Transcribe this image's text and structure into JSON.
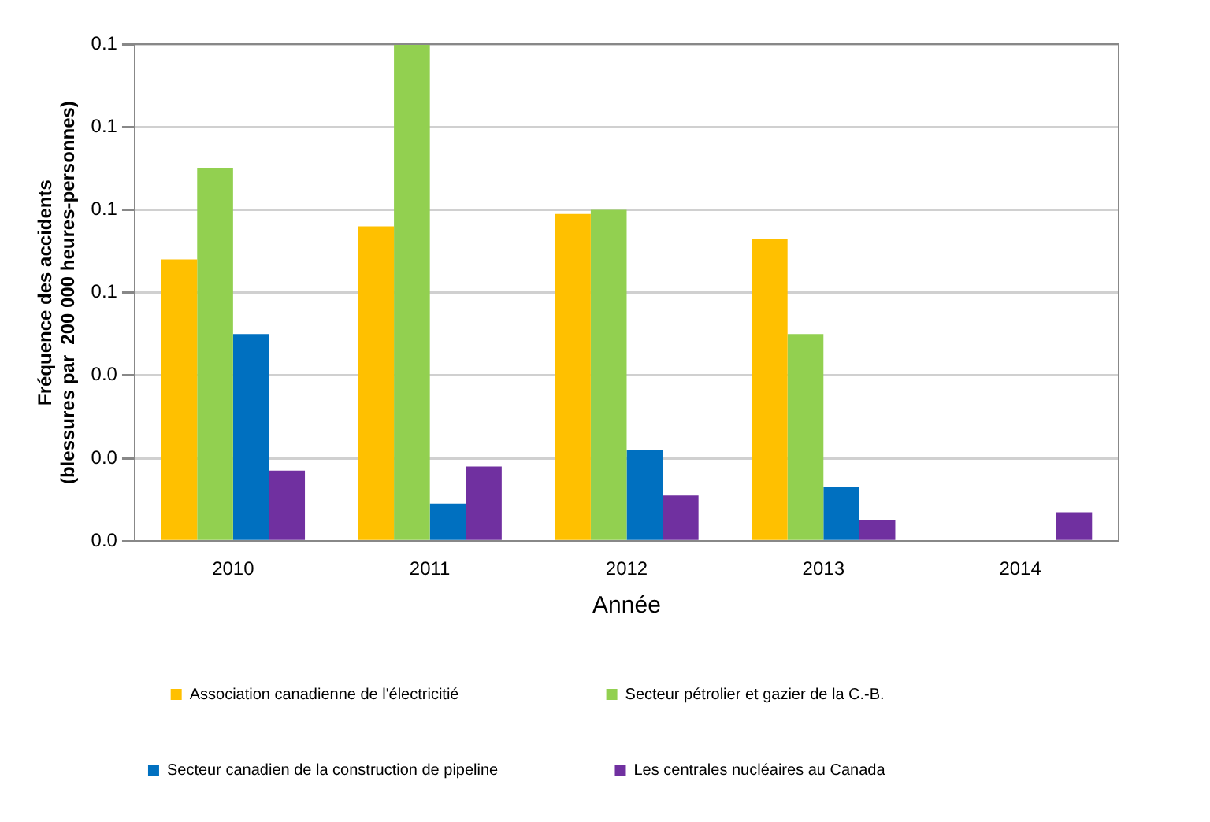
{
  "chart_data": {
    "type": "bar",
    "xlabel": "Année",
    "ylabel": "Fréquence des accidents\n(blessures par  200 000 heures-personnes)",
    "categories": [
      "2010",
      "2011",
      "2012",
      "2013",
      "2014"
    ],
    "series": [
      {
        "name": "Association canadienne de l'électricitié",
        "color": "#ffc000",
        "values": [
          0.068,
          0.076,
          0.079,
          0.073,
          null
        ]
      },
      {
        "name": "Secteur pétrolier et gazier de la C.-B.",
        "color": "#92d050",
        "values": [
          0.09,
          0.12,
          0.08,
          0.05,
          null
        ]
      },
      {
        "name": "Secteur canadien de la construction de pipeline",
        "color": "#0070c0",
        "values": [
          0.05,
          0.009,
          0.022,
          0.013,
          null
        ]
      },
      {
        "name": "Les centrales nucléaires au Canada",
        "color": "#7030a0",
        "values": [
          0.017,
          0.018,
          0.011,
          0.005,
          0.007
        ]
      }
    ],
    "ylim": [
      0,
      0.12
    ],
    "yticks": [
      {
        "value": 0,
        "label": "0.0"
      },
      {
        "value": 0.02,
        "label": "0.0"
      },
      {
        "value": 0.04,
        "label": "0.0"
      },
      {
        "value": 0.06,
        "label": "0.1"
      },
      {
        "value": 0.08,
        "label": "0.1"
      },
      {
        "value": 0.1,
        "label": "0.1"
      },
      {
        "value": 0.12,
        "label": "0.1"
      }
    ],
    "grid": "y",
    "legend": "bottom"
  }
}
